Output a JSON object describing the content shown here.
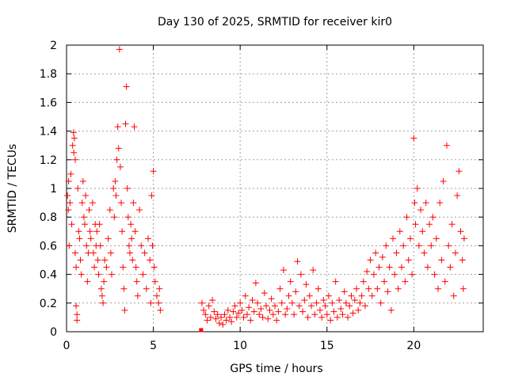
{
  "chart_data": {
    "type": "scatter",
    "title": "Day 130 of 2025, SRMTID for receiver kir0",
    "xlabel": "GPS time / hours",
    "ylabel": "SRMTID / TECUs",
    "xlim": [
      0,
      24
    ],
    "ylim": [
      0,
      2
    ],
    "xticks": [
      0,
      5,
      10,
      15,
      20
    ],
    "xtick_labels": [
      "0",
      "5",
      "10",
      "15",
      "20"
    ],
    "yticks": [
      0,
      0.2,
      0.4,
      0.6,
      0.8,
      1,
      1.2,
      1.4,
      1.6,
      1.8,
      2
    ],
    "ytick_labels": [
      "0",
      "0.2",
      "0.4",
      "0.6",
      "0.8",
      "1",
      "1.2",
      "1.4",
      "1.6",
      "1.8",
      "2"
    ],
    "grid": true,
    "marker": "+",
    "color": "#ff0000",
    "series": [
      {
        "name": "SRMTID",
        "points": [
          [
            0.05,
            0.95
          ],
          [
            0.1,
            0.85
          ],
          [
            0.12,
            1.05
          ],
          [
            0.15,
            0.6
          ],
          [
            0.2,
            0.9
          ],
          [
            0.25,
            1.1
          ],
          [
            0.3,
            0.75
          ],
          [
            0.35,
            1.3
          ],
          [
            0.4,
            1.39
          ],
          [
            0.42,
            1.25
          ],
          [
            0.45,
            1.35
          ],
          [
            0.5,
            1.2
          ],
          [
            0.5,
            0.55
          ],
          [
            0.55,
            0.45
          ],
          [
            0.55,
            0.18
          ],
          [
            0.6,
            0.12
          ],
          [
            0.6,
            0.08
          ],
          [
            0.65,
            1.0
          ],
          [
            0.7,
            0.7
          ],
          [
            0.75,
            0.65
          ],
          [
            0.8,
            0.5
          ],
          [
            0.85,
            0.4
          ],
          [
            0.9,
            0.9
          ],
          [
            0.95,
            1.05
          ],
          [
            1.0,
            0.8
          ],
          [
            1.05,
            0.75
          ],
          [
            1.1,
            0.95
          ],
          [
            1.15,
            0.6
          ],
          [
            1.2,
            0.35
          ],
          [
            1.25,
            0.55
          ],
          [
            1.3,
            0.85
          ],
          [
            1.35,
            0.7
          ],
          [
            1.4,
            0.65
          ],
          [
            1.5,
            0.9
          ],
          [
            1.55,
            0.55
          ],
          [
            1.6,
            0.45
          ],
          [
            1.65,
            0.75
          ],
          [
            1.7,
            0.6
          ],
          [
            1.75,
            0.7
          ],
          [
            1.8,
            0.5
          ],
          [
            1.85,
            0.4
          ],
          [
            1.9,
            0.75
          ],
          [
            1.95,
            0.6
          ],
          [
            2.0,
            0.3
          ],
          [
            2.05,
            0.25
          ],
          [
            2.1,
            0.2
          ],
          [
            2.15,
            0.35
          ],
          [
            2.2,
            0.5
          ],
          [
            2.3,
            0.45
          ],
          [
            2.4,
            0.65
          ],
          [
            2.5,
            0.85
          ],
          [
            2.55,
            0.55
          ],
          [
            2.6,
            0.4
          ],
          [
            2.7,
            1.0
          ],
          [
            2.75,
            0.8
          ],
          [
            2.8,
            1.05
          ],
          [
            2.85,
            0.95
          ],
          [
            2.9,
            1.2
          ],
          [
            2.95,
            1.43
          ],
          [
            3.0,
            1.28
          ],
          [
            3.05,
            1.97
          ],
          [
            3.1,
            1.15
          ],
          [
            3.15,
            0.9
          ],
          [
            3.2,
            0.7
          ],
          [
            3.25,
            0.45
          ],
          [
            3.3,
            0.3
          ],
          [
            3.35,
            0.15
          ],
          [
            3.4,
            1.45
          ],
          [
            3.45,
            1.71
          ],
          [
            3.5,
            1.0
          ],
          [
            3.55,
            0.8
          ],
          [
            3.6,
            0.6
          ],
          [
            3.65,
            0.55
          ],
          [
            3.7,
            0.75
          ],
          [
            3.75,
            0.65
          ],
          [
            3.8,
            0.5
          ],
          [
            3.85,
            0.9
          ],
          [
            3.9,
            1.43
          ],
          [
            3.95,
            0.7
          ],
          [
            4.0,
            0.45
          ],
          [
            4.05,
            0.35
          ],
          [
            4.1,
            0.25
          ],
          [
            4.2,
            0.85
          ],
          [
            4.3,
            0.6
          ],
          [
            4.4,
            0.4
          ],
          [
            4.5,
            0.55
          ],
          [
            4.6,
            0.3
          ],
          [
            4.7,
            0.65
          ],
          [
            4.8,
            0.5
          ],
          [
            4.85,
            0.2
          ],
          [
            4.9,
            0.95
          ],
          [
            4.95,
            0.6
          ],
          [
            5.0,
            1.12
          ],
          [
            5.05,
            0.45
          ],
          [
            5.1,
            0.35
          ],
          [
            5.2,
            0.25
          ],
          [
            5.3,
            0.2
          ],
          [
            5.35,
            0.3
          ],
          [
            5.4,
            0.15
          ],
          [
            7.75,
            0.0
          ],
          [
            7.8,
            0.2
          ],
          [
            7.9,
            0.15
          ],
          [
            8.0,
            0.12
          ],
          [
            8.1,
            0.08
          ],
          [
            8.2,
            0.18
          ],
          [
            8.3,
            0.1
          ],
          [
            8.4,
            0.22
          ],
          [
            8.5,
            0.14
          ],
          [
            8.6,
            0.09
          ],
          [
            8.7,
            0.12
          ],
          [
            8.8,
            0.06
          ],
          [
            8.9,
            0.1
          ],
          [
            9.0,
            0.05
          ],
          [
            9.1,
            0.12
          ],
          [
            9.2,
            0.08
          ],
          [
            9.3,
            0.15
          ],
          [
            9.4,
            0.1
          ],
          [
            9.5,
            0.07
          ],
          [
            9.6,
            0.14
          ],
          [
            9.7,
            0.18
          ],
          [
            9.8,
            0.1
          ],
          [
            9.9,
            0.13
          ],
          [
            10.0,
            0.2
          ],
          [
            10.1,
            0.15
          ],
          [
            10.2,
            0.1
          ],
          [
            10.3,
            0.25
          ],
          [
            10.4,
            0.12
          ],
          [
            10.5,
            0.17
          ],
          [
            10.6,
            0.08
          ],
          [
            10.7,
            0.22
          ],
          [
            10.8,
            0.14
          ],
          [
            10.9,
            0.34
          ],
          [
            11.0,
            0.2
          ],
          [
            11.1,
            0.12
          ],
          [
            11.2,
            0.16
          ],
          [
            11.3,
            0.1
          ],
          [
            11.4,
            0.27
          ],
          [
            11.5,
            0.18
          ],
          [
            11.6,
            0.09
          ],
          [
            11.7,
            0.15
          ],
          [
            11.8,
            0.23
          ],
          [
            11.9,
            0.12
          ],
          [
            12.0,
            0.18
          ],
          [
            12.1,
            0.08
          ],
          [
            12.2,
            0.14
          ],
          [
            12.3,
            0.3
          ],
          [
            12.4,
            0.2
          ],
          [
            12.5,
            0.43
          ],
          [
            12.6,
            0.12
          ],
          [
            12.7,
            0.16
          ],
          [
            12.8,
            0.25
          ],
          [
            12.9,
            0.35
          ],
          [
            13.0,
            0.2
          ],
          [
            13.1,
            0.12
          ],
          [
            13.2,
            0.28
          ],
          [
            13.3,
            0.49
          ],
          [
            13.4,
            0.18
          ],
          [
            13.5,
            0.4
          ],
          [
            13.6,
            0.14
          ],
          [
            13.7,
            0.22
          ],
          [
            13.8,
            0.33
          ],
          [
            13.9,
            0.1
          ],
          [
            14.0,
            0.25
          ],
          [
            14.1,
            0.18
          ],
          [
            14.2,
            0.43
          ],
          [
            14.3,
            0.12
          ],
          [
            14.4,
            0.2
          ],
          [
            14.5,
            0.3
          ],
          [
            14.6,
            0.15
          ],
          [
            14.7,
            0.1
          ],
          [
            14.8,
            0.22
          ],
          [
            14.9,
            0.18
          ],
          [
            15.0,
            0.12
          ],
          [
            15.1,
            0.25
          ],
          [
            15.2,
            0.08
          ],
          [
            15.3,
            0.2
          ],
          [
            15.4,
            0.14
          ],
          [
            15.5,
            0.35
          ],
          [
            15.6,
            0.1
          ],
          [
            15.7,
            0.22
          ],
          [
            15.8,
            0.16
          ],
          [
            15.9,
            0.12
          ],
          [
            16.0,
            0.28
          ],
          [
            16.1,
            0.2
          ],
          [
            16.2,
            0.1
          ],
          [
            16.3,
            0.18
          ],
          [
            16.4,
            0.25
          ],
          [
            16.5,
            0.13
          ],
          [
            16.6,
            0.22
          ],
          [
            16.7,
            0.3
          ],
          [
            16.8,
            0.15
          ],
          [
            16.9,
            0.2
          ],
          [
            17.0,
            0.25
          ],
          [
            17.1,
            0.35
          ],
          [
            17.2,
            0.18
          ],
          [
            17.3,
            0.42
          ],
          [
            17.4,
            0.3
          ],
          [
            17.5,
            0.5
          ],
          [
            17.6,
            0.25
          ],
          [
            17.7,
            0.4
          ],
          [
            17.8,
            0.55
          ],
          [
            17.9,
            0.3
          ],
          [
            18.0,
            0.45
          ],
          [
            18.1,
            0.2
          ],
          [
            18.2,
            0.52
          ],
          [
            18.3,
            0.35
          ],
          [
            18.4,
            0.6
          ],
          [
            18.5,
            0.28
          ],
          [
            18.6,
            0.45
          ],
          [
            18.7,
            0.15
          ],
          [
            18.8,
            0.65
          ],
          [
            18.9,
            0.4
          ],
          [
            19.0,
            0.55
          ],
          [
            19.1,
            0.3
          ],
          [
            19.2,
            0.7
          ],
          [
            19.3,
            0.45
          ],
          [
            19.4,
            0.6
          ],
          [
            19.5,
            0.35
          ],
          [
            19.6,
            0.8
          ],
          [
            19.7,
            0.5
          ],
          [
            19.8,
            0.65
          ],
          [
            19.9,
            0.4
          ],
          [
            20.0,
            1.35
          ],
          [
            20.05,
            0.9
          ],
          [
            20.1,
            0.75
          ],
          [
            20.2,
            1.0
          ],
          [
            20.3,
            0.6
          ],
          [
            20.4,
            0.85
          ],
          [
            20.5,
            0.7
          ],
          [
            20.6,
            0.55
          ],
          [
            20.7,
            0.9
          ],
          [
            20.8,
            0.45
          ],
          [
            20.9,
            0.75
          ],
          [
            21.0,
            0.6
          ],
          [
            21.1,
            0.8
          ],
          [
            21.2,
            0.4
          ],
          [
            21.3,
            0.65
          ],
          [
            21.4,
            0.3
          ],
          [
            21.5,
            0.9
          ],
          [
            21.6,
            0.5
          ],
          [
            21.7,
            1.05
          ],
          [
            21.8,
            0.35
          ],
          [
            21.9,
            1.3
          ],
          [
            22.0,
            0.6
          ],
          [
            22.1,
            0.45
          ],
          [
            22.2,
            0.75
          ],
          [
            22.3,
            0.25
          ],
          [
            22.4,
            0.55
          ],
          [
            22.5,
            0.95
          ],
          [
            22.6,
            1.12
          ],
          [
            22.7,
            0.7
          ],
          [
            22.8,
            0.5
          ],
          [
            22.85,
            0.3
          ],
          [
            22.9,
            0.65
          ]
        ]
      }
    ]
  }
}
